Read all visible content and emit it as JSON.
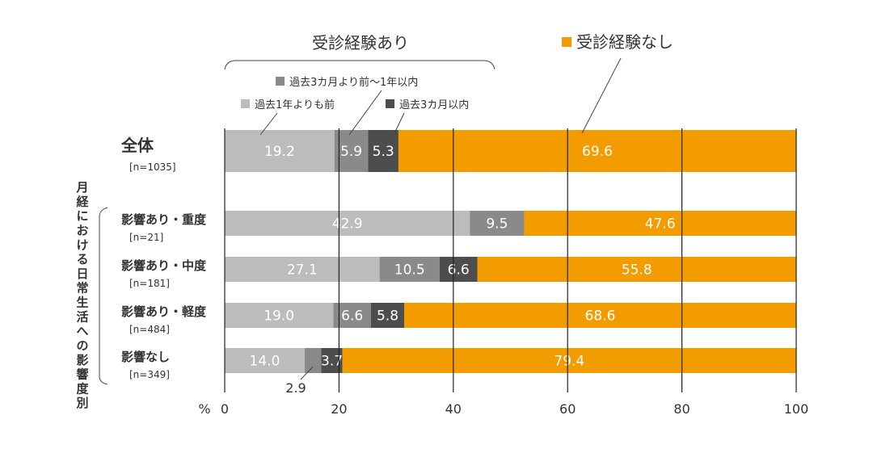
{
  "chart_data": {
    "type": "bar",
    "orientation": "horizontal",
    "stacked": true,
    "xlim": [
      0,
      100
    ],
    "x_ticks": [
      0,
      20,
      40,
      60,
      80,
      100
    ],
    "x_unit": "%",
    "group_label": "月経における日常生活への影響度別",
    "bracket_label": "受診経験あり",
    "categories": [
      {
        "name": "全体",
        "n": "[n=1035]"
      },
      {
        "name": "影響あり・重度",
        "n": "[n=21]"
      },
      {
        "name": "影響あり・中度",
        "n": "[n=181]"
      },
      {
        "name": "影響あり・軽度",
        "n": "[n=484]"
      },
      {
        "name": "影響なし",
        "n": "[n=349]"
      }
    ],
    "series": [
      {
        "name": "過去1年よりも前",
        "color": "#bcbcbc",
        "values": [
          19.2,
          42.9,
          27.1,
          19.0,
          14.0
        ]
      },
      {
        "name": "過去3カ月より前〜1年以内",
        "color": "#8a8a8a",
        "values": [
          5.9,
          9.5,
          10.5,
          6.6,
          2.9
        ]
      },
      {
        "name": "過去3カ月以内",
        "color": "#4d4d4d",
        "values": [
          5.3,
          0,
          6.6,
          5.8,
          3.7
        ]
      },
      {
        "name": "受診経験なし",
        "color": "#f39c00",
        "values": [
          69.6,
          47.6,
          55.8,
          68.6,
          79.4
        ]
      }
    ],
    "data_labels": [
      [
        "19.2",
        "5.9",
        "5.3",
        "69.6"
      ],
      [
        "42.9",
        "9.5",
        "",
        "47.6"
      ],
      [
        "27.1",
        "10.5",
        "6.6",
        "55.8"
      ],
      [
        "19.0",
        "6.6",
        "5.8",
        "68.6"
      ],
      [
        "14.0",
        "",
        "3.7",
        "79.4"
      ]
    ],
    "outside_label": {
      "text": "2.9",
      "row": 4,
      "series": 1
    },
    "grid": "vertical"
  }
}
